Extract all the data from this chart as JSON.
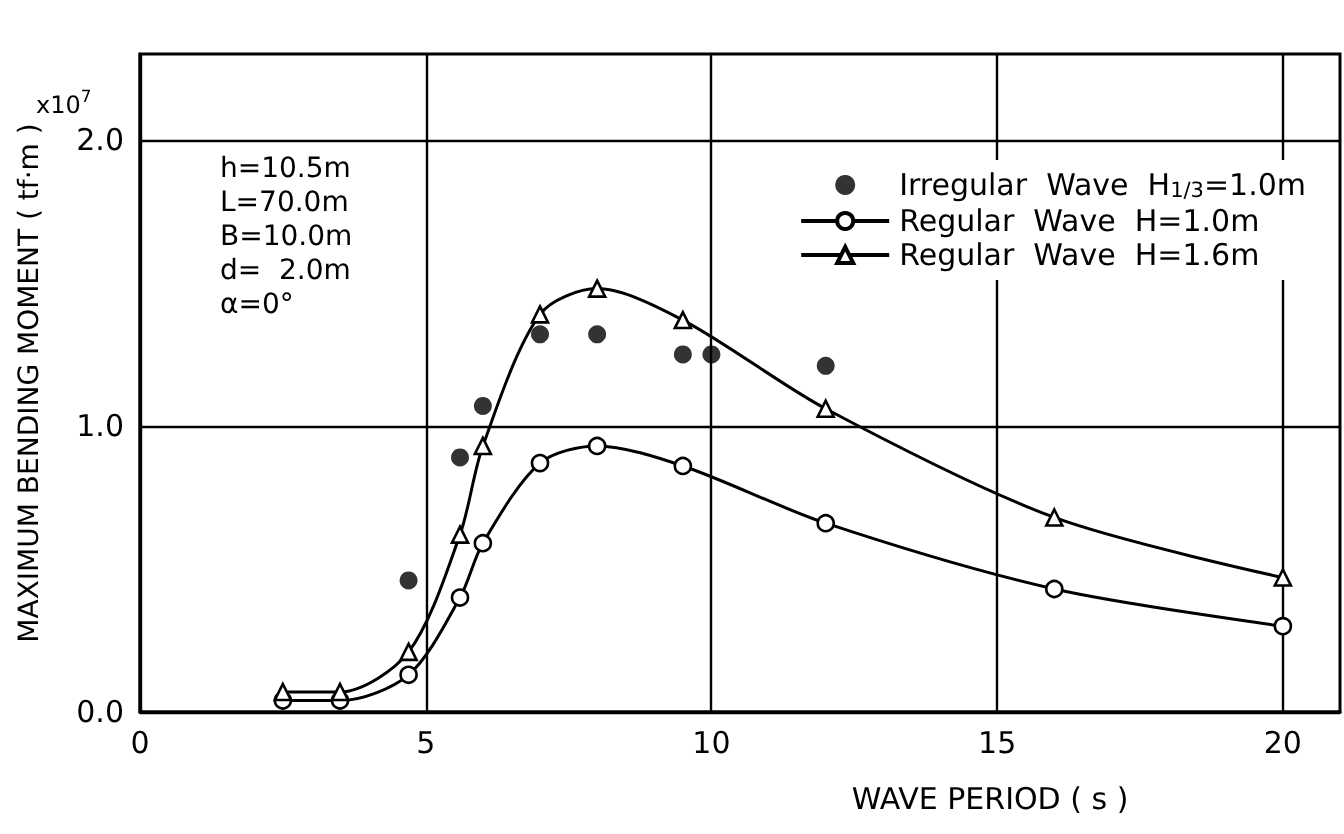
{
  "chart_data": {
    "type": "line",
    "xlabel": "WAVE PERIOD ( s )",
    "ylabel": "MAXIMUM BENDING MOMENT ( tf·m )",
    "annotations": [
      "x10$^{7}$",
      "h=10.5m\nL=70.0m\nB=10.0m\nd=  2.0m\nα=0°"
    ],
    "xlim": [
      0,
      21
    ],
    "xticks": [
      0,
      5,
      10,
      15,
      20
    ],
    "ylim": [
      0,
      2.3
    ],
    "yticks": [
      {
        "value": 0,
        "label": "0.0"
      },
      {
        "value": 1,
        "label": "1.0"
      },
      {
        "value": 2,
        "label": "2.0"
      }
    ],
    "grid": true,
    "legend": "top right",
    "series": [
      {
        "name": "Irregular  Wave  H$_{1/3}$=1.0m",
        "type": "scatter",
        "marker": "circle",
        "color": "#000000",
        "x": [
          4.7,
          5.6,
          6.0,
          7,
          8,
          9.5,
          10,
          12
        ],
        "values": [
          0.46,
          0.89,
          1.07,
          1.32,
          1.32,
          1.25,
          1.25,
          1.21
        ]
      },
      {
        "name": "Regular  Wave  H=1.0m",
        "marker": "circle",
        "color": "#000000",
        "x": [
          2.5,
          3.5,
          4.7,
          5.6,
          6.0,
          7,
          8,
          9.5,
          12,
          16,
          20
        ],
        "values": [
          0.04,
          0.04,
          0.13,
          0.4,
          0.59,
          0.87,
          0.93,
          0.86,
          0.66,
          0.43,
          0.3
        ]
      },
      {
        "name": "Regular  Wave  H=1.6m",
        "marker": "triangle",
        "color": "#000000",
        "x": [
          2.5,
          3.5,
          4.7,
          5.6,
          6.0,
          7,
          8,
          9.5,
          12,
          16,
          20
        ],
        "values": [
          0.07,
          0.07,
          0.21,
          0.62,
          0.93,
          1.39,
          1.48,
          1.37,
          1.06,
          0.68,
          0.47
        ]
      }
    ]
  }
}
